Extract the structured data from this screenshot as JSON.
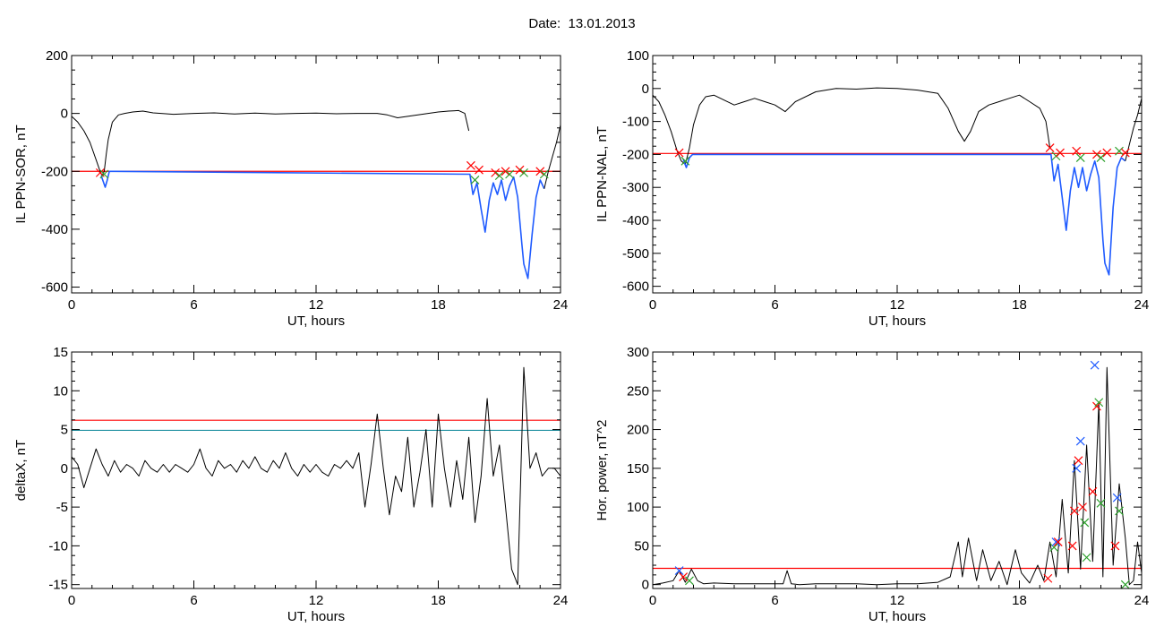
{
  "figure_title": "Date:  13.01.2013",
  "chart_data": [
    {
      "id": "p1",
      "type": "line",
      "ylabel": "IL PPN-SOR, nT",
      "xlabel": "UT, hours",
      "xlim": [
        0,
        24
      ],
      "ylim": [
        -620,
        200
      ],
      "xticks": [
        0,
        6,
        12,
        18,
        24
      ],
      "yticks": [
        200,
        0,
        -200,
        -400,
        -600
      ],
      "hlines": [
        {
          "y": -200,
          "color": "#ff0000"
        }
      ],
      "series": [
        {
          "color": "#000000",
          "x": [
            0,
            0.3,
            0.6,
            0.9,
            1.2,
            1.4,
            1.5,
            1.6,
            1.7,
            1.8,
            2.0,
            2.3,
            2.6,
            3,
            3.5,
            4,
            5,
            6,
            7,
            8,
            9,
            10,
            11,
            12,
            13,
            14,
            15,
            15.5,
            16,
            16.5,
            17,
            17.5,
            18,
            18.5,
            19,
            19.3,
            19.5
          ],
          "y": [
            -10,
            -30,
            -60,
            -100,
            -160,
            -200,
            -215,
            -200,
            -140,
            -90,
            -30,
            -5,
            0,
            5,
            8,
            2,
            -3,
            0,
            2,
            -2,
            1,
            -2,
            0,
            1,
            -1,
            0,
            0,
            -5,
            -15,
            -10,
            -5,
            0,
            5,
            8,
            10,
            0,
            -60
          ]
        },
        {
          "color": "#1f5bff",
          "x": [
            1.45,
            1.55,
            1.65,
            1.75,
            1.85,
            19.55,
            19.7,
            19.9,
            20.1,
            20.3,
            20.5,
            20.7,
            20.9,
            21.1,
            21.3,
            21.5,
            21.7,
            21.9,
            22.1,
            22.2,
            22.4,
            22.6,
            22.8,
            23.0,
            23.2
          ],
          "y": [
            -215,
            -235,
            -255,
            -230,
            -200,
            -210,
            -280,
            -240,
            -330,
            -410,
            -300,
            -240,
            -280,
            -230,
            -300,
            -250,
            -220,
            -290,
            -450,
            -520,
            -570,
            -420,
            -290,
            -230,
            -260
          ]
        },
        {
          "color": "#000000",
          "x": [
            23.2,
            23.4,
            23.6,
            23.8,
            24
          ],
          "y": [
            -260,
            -200,
            -150,
            -100,
            -40
          ]
        }
      ],
      "markers": [
        {
          "x": 1.4,
          "y": -205,
          "color": "#ff0000"
        },
        {
          "x": 1.6,
          "y": -210,
          "color": "#2ca02c"
        },
        {
          "x": 19.6,
          "y": -180,
          "color": "#ff0000"
        },
        {
          "x": 19.8,
          "y": -230,
          "color": "#2ca02c"
        },
        {
          "x": 20.0,
          "y": -195,
          "color": "#ff0000"
        },
        {
          "x": 20.8,
          "y": -205,
          "color": "#ff0000"
        },
        {
          "x": 21.0,
          "y": -215,
          "color": "#2ca02c"
        },
        {
          "x": 21.3,
          "y": -200,
          "color": "#ff0000"
        },
        {
          "x": 21.5,
          "y": -210,
          "color": "#2ca02c"
        },
        {
          "x": 22.0,
          "y": -195,
          "color": "#ff0000"
        },
        {
          "x": 22.2,
          "y": -205,
          "color": "#2ca02c"
        },
        {
          "x": 23.0,
          "y": -200,
          "color": "#ff0000"
        },
        {
          "x": 23.2,
          "y": -210,
          "color": "#2ca02c"
        }
      ]
    },
    {
      "id": "p2",
      "type": "line",
      "ylabel": "IL PPN-NAL, nT",
      "xlabel": "UT, hours",
      "xlim": [
        0,
        24
      ],
      "ylim": [
        -620,
        100
      ],
      "xticks": [
        0,
        6,
        12,
        18,
        24
      ],
      "yticks": [
        100,
        0,
        -100,
        -200,
        -300,
        -400,
        -500,
        -600
      ],
      "hlines": [
        {
          "y": -197,
          "color": "#ff0000"
        }
      ],
      "series": [
        {
          "color": "#000000",
          "x": [
            0,
            0.3,
            0.6,
            0.9,
            1.2,
            1.4,
            1.6,
            1.8,
            2.0,
            2.3,
            2.6,
            3,
            3.5,
            4,
            4.5,
            5,
            5.5,
            6,
            6.5,
            7,
            8,
            9,
            10,
            11,
            12,
            13,
            14,
            14.5,
            15,
            15.3,
            15.6,
            16,
            16.5,
            17,
            17.5,
            18,
            18.5,
            19,
            19.3,
            19.5
          ],
          "y": [
            -20,
            -40,
            -80,
            -130,
            -190,
            -220,
            -230,
            -180,
            -110,
            -50,
            -25,
            -20,
            -35,
            -50,
            -40,
            -30,
            -40,
            -50,
            -70,
            -40,
            -10,
            0,
            -2,
            2,
            0,
            -5,
            -15,
            -60,
            -130,
            -160,
            -130,
            -70,
            -50,
            -40,
            -30,
            -20,
            -40,
            -60,
            -100,
            -180
          ]
        },
        {
          "color": "#1f5bff",
          "x": [
            1.5,
            1.65,
            1.8,
            1.95,
            19.55,
            19.7,
            19.9,
            20.1,
            20.3,
            20.5,
            20.7,
            20.9,
            21.1,
            21.3,
            21.5,
            21.7,
            21.9,
            22.1,
            22.2,
            22.4,
            22.6,
            22.8,
            23.0,
            23.2
          ],
          "y": [
            -215,
            -240,
            -210,
            -200,
            -200,
            -280,
            -230,
            -330,
            -430,
            -310,
            -240,
            -300,
            -240,
            -310,
            -260,
            -220,
            -270,
            -460,
            -530,
            -565,
            -360,
            -240,
            -210,
            -220
          ]
        },
        {
          "color": "#000000",
          "x": [
            23.2,
            23.4,
            23.6,
            23.8,
            24
          ],
          "y": [
            -220,
            -170,
            -120,
            -80,
            -30
          ]
        }
      ],
      "markers": [
        {
          "x": 1.3,
          "y": -195,
          "color": "#ff0000"
        },
        {
          "x": 1.6,
          "y": -220,
          "color": "#2ca02c"
        },
        {
          "x": 19.5,
          "y": -180,
          "color": "#ff0000"
        },
        {
          "x": 19.8,
          "y": -205,
          "color": "#2ca02c"
        },
        {
          "x": 20.0,
          "y": -195,
          "color": "#ff0000"
        },
        {
          "x": 20.8,
          "y": -190,
          "color": "#ff0000"
        },
        {
          "x": 21.0,
          "y": -210,
          "color": "#2ca02c"
        },
        {
          "x": 21.8,
          "y": -200,
          "color": "#ff0000"
        },
        {
          "x": 22.0,
          "y": -210,
          "color": "#2ca02c"
        },
        {
          "x": 22.3,
          "y": -195,
          "color": "#ff0000"
        },
        {
          "x": 22.9,
          "y": -190,
          "color": "#2ca02c"
        },
        {
          "x": 23.2,
          "y": -195,
          "color": "#ff0000"
        }
      ]
    },
    {
      "id": "p3",
      "type": "line",
      "ylabel": "deltaX, nT",
      "xlabel": "UT, hours",
      "xlim": [
        0,
        24
      ],
      "ylim": [
        -15.5,
        15
      ],
      "xticks": [
        0,
        6,
        12,
        18,
        24
      ],
      "yticks": [
        15,
        10,
        5,
        0,
        -5,
        -10,
        -15
      ],
      "hlines": [
        {
          "y": 6.2,
          "color": "#ff0000"
        },
        {
          "y": 4.9,
          "color": "#1f8fa0"
        }
      ],
      "series": [
        {
          "color": "#000000",
          "x": [
            0,
            0.3,
            0.6,
            0.9,
            1.2,
            1.5,
            1.8,
            2.1,
            2.4,
            2.7,
            3.0,
            3.3,
            3.6,
            3.9,
            4.2,
            4.5,
            4.8,
            5.1,
            5.4,
            5.7,
            6.0,
            6.3,
            6.6,
            6.9,
            7.2,
            7.5,
            7.8,
            8.1,
            8.4,
            8.7,
            9.0,
            9.3,
            9.6,
            9.9,
            10.2,
            10.5,
            10.8,
            11.1,
            11.4,
            11.7,
            12.0,
            12.3,
            12.6,
            12.9,
            13.2,
            13.5,
            13.8,
            14.1,
            14.4,
            14.7,
            15.0,
            15.3,
            15.6,
            15.9,
            16.2,
            16.5,
            16.8,
            17.1,
            17.4,
            17.7,
            18.0,
            18.3,
            18.6,
            18.9,
            19.2,
            19.5,
            19.8,
            20.1,
            20.4,
            20.7,
            21.0,
            21.3,
            21.6,
            21.9,
            22.2,
            22.5,
            22.8,
            23.1,
            23.4,
            23.7,
            24.0
          ],
          "y": [
            1.5,
            0.5,
            -2.5,
            0,
            2.5,
            0.5,
            -1,
            1,
            -0.5,
            0.5,
            0,
            -1,
            1,
            0,
            -0.5,
            0.5,
            -0.5,
            0.5,
            0,
            -0.5,
            0.5,
            2.5,
            0,
            -1,
            1,
            0,
            0.5,
            -0.5,
            1,
            0,
            1.5,
            0,
            -0.5,
            1,
            0,
            2,
            0,
            -1,
            0.5,
            -0.5,
            0.5,
            -0.5,
            -1,
            0.5,
            0,
            1,
            0,
            2,
            -5,
            0.5,
            7,
            0,
            -6,
            -1,
            -3,
            4,
            -5,
            -0.5,
            5,
            -5,
            7,
            0,
            -5,
            1,
            -4,
            4,
            -7,
            -1,
            9,
            -1,
            3,
            -5,
            -13,
            -15,
            13,
            0,
            2,
            -1,
            0,
            0,
            -1
          ]
        }
      ],
      "markers": []
    },
    {
      "id": "p4",
      "type": "line",
      "ylabel": "Hor. power, nT^2",
      "xlabel": "UT, hours",
      "xlim": [
        0,
        24
      ],
      "ylim": [
        -5,
        300
      ],
      "xticks": [
        0,
        6,
        12,
        18,
        24
      ],
      "yticks": [
        300,
        250,
        200,
        150,
        100,
        50,
        0
      ],
      "hlines": [
        {
          "y": 21,
          "color": "#ff0000"
        }
      ],
      "series": [
        {
          "color": "#000000",
          "x": [
            0,
            0.5,
            1.0,
            1.3,
            1.6,
            1.9,
            2.2,
            2.5,
            3.0,
            4,
            5,
            6,
            6.4,
            6.6,
            6.8,
            7.2,
            8,
            9,
            10,
            11,
            12,
            13,
            14,
            14.6,
            15.0,
            15.2,
            15.5,
            15.9,
            16.2,
            16.6,
            17.0,
            17.4,
            17.8,
            18.1,
            18.5,
            18.9,
            19.2,
            19.5,
            19.8,
            20.1,
            20.4,
            20.7,
            21.0,
            21.3,
            21.6,
            21.9,
            22.1,
            22.3,
            22.6,
            22.9,
            23.2,
            23.4,
            23.6,
            23.8,
            24.0
          ],
          "y": [
            0,
            2,
            5,
            18,
            3,
            20,
            5,
            1,
            2,
            1,
            1,
            1,
            1,
            18,
            1,
            0,
            1,
            1,
            1,
            0,
            1,
            1,
            3,
            10,
            55,
            10,
            60,
            5,
            45,
            5,
            30,
            0,
            45,
            15,
            2,
            25,
            5,
            55,
            10,
            110,
            15,
            160,
            20,
            180,
            30,
            235,
            10,
            280,
            25,
            130,
            60,
            0,
            5,
            55,
            15
          ]
        }
      ],
      "markers": [
        {
          "x": 1.3,
          "y": 18,
          "color": "#1f5bff"
        },
        {
          "x": 1.5,
          "y": 10,
          "color": "#ff0000"
        },
        {
          "x": 1.8,
          "y": 5,
          "color": "#2ca02c"
        },
        {
          "x": 19.4,
          "y": 8,
          "color": "#ff0000"
        },
        {
          "x": 19.7,
          "y": 48,
          "color": "#2ca02c"
        },
        {
          "x": 19.8,
          "y": 55,
          "color": "#1f5bff"
        },
        {
          "x": 19.9,
          "y": 55,
          "color": "#ff0000"
        },
        {
          "x": 20.6,
          "y": 50,
          "color": "#ff0000"
        },
        {
          "x": 20.7,
          "y": 95,
          "color": "#ff0000"
        },
        {
          "x": 20.8,
          "y": 150,
          "color": "#1f5bff"
        },
        {
          "x": 20.9,
          "y": 160,
          "color": "#ff0000"
        },
        {
          "x": 21.0,
          "y": 185,
          "color": "#1f5bff"
        },
        {
          "x": 21.1,
          "y": 100,
          "color": "#ff0000"
        },
        {
          "x": 21.2,
          "y": 80,
          "color": "#2ca02c"
        },
        {
          "x": 21.3,
          "y": 35,
          "color": "#2ca02c"
        },
        {
          "x": 21.6,
          "y": 120,
          "color": "#ff0000"
        },
        {
          "x": 21.7,
          "y": 283,
          "color": "#1f5bff"
        },
        {
          "x": 21.8,
          "y": 230,
          "color": "#ff0000"
        },
        {
          "x": 21.9,
          "y": 235,
          "color": "#2ca02c"
        },
        {
          "x": 22.0,
          "y": 105,
          "color": "#2ca02c"
        },
        {
          "x": 22.8,
          "y": 112,
          "color": "#1f5bff"
        },
        {
          "x": 22.9,
          "y": 95,
          "color": "#2ca02c"
        },
        {
          "x": 22.7,
          "y": 50,
          "color": "#ff0000"
        },
        {
          "x": 23.2,
          "y": 0,
          "color": "#2ca02c"
        }
      ]
    }
  ]
}
